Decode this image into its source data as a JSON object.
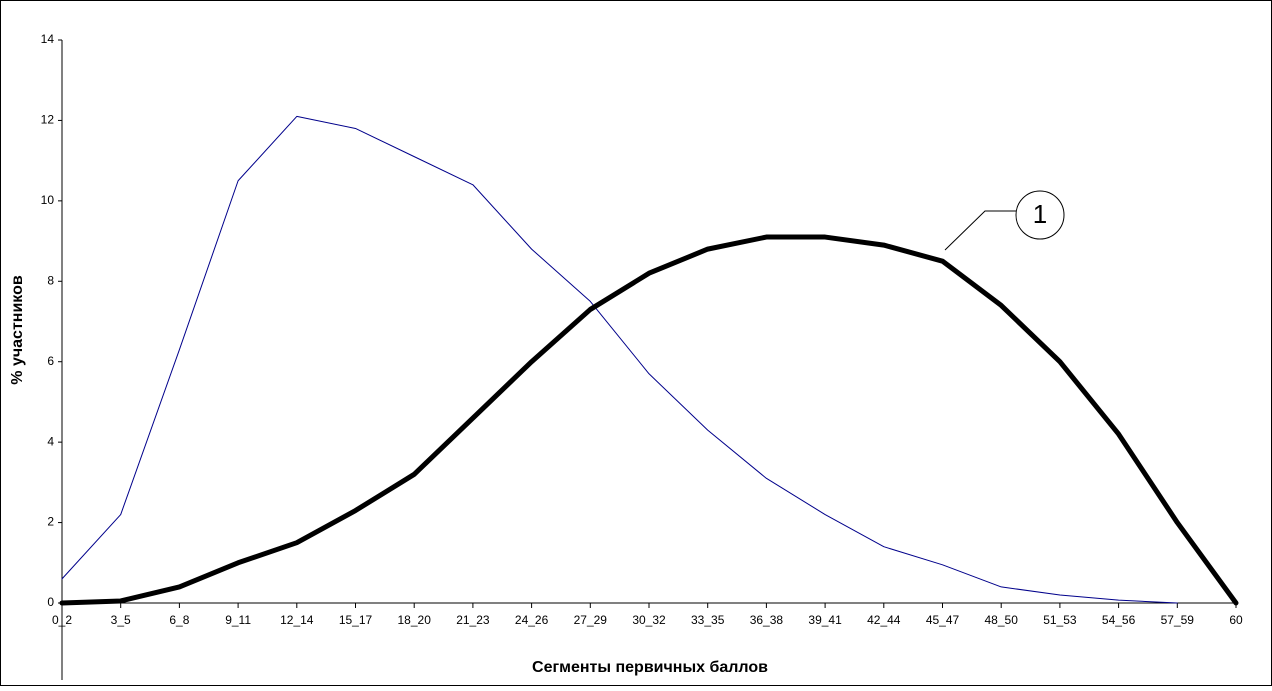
{
  "chart_data": {
    "type": "line",
    "y_label": "% участников",
    "x_label": "Сегменты первичных баллов",
    "categories": [
      "0_2",
      "3_5",
      "6_8",
      "9_11",
      "12_14",
      "15_17",
      "18_20",
      "21_23",
      "24_26",
      "27_29",
      "30_32",
      "33_35",
      "36_38",
      "39_41",
      "42_44",
      "45_47",
      "48_50",
      "51_53",
      "54_56",
      "57_59",
      "60"
    ],
    "series": [
      {
        "color": "#00008b",
        "width": 1,
        "values": [
          0.6,
          2.2,
          6.3,
          10.5,
          12.1,
          11.8,
          11.1,
          10.4,
          8.8,
          7.5,
          5.7,
          4.3,
          3.1,
          2.2,
          1.4,
          0.95,
          0.4,
          0.2,
          0.07,
          0,
          null
        ]
      },
      {
        "color": "#000000",
        "width": 5,
        "values": [
          0,
          0.05,
          0.4,
          1.0,
          1.5,
          2.3,
          3.2,
          4.6,
          6.0,
          7.3,
          8.2,
          8.8,
          9.1,
          9.1,
          8.9,
          8.5,
          7.4,
          6.0,
          4.2,
          2.0,
          0
        ]
      }
    ],
    "annotation": "1",
    "ylim": [
      0,
      14
    ],
    "yticks": [
      0,
      2,
      4,
      6,
      8,
      10,
      12,
      14
    ]
  }
}
